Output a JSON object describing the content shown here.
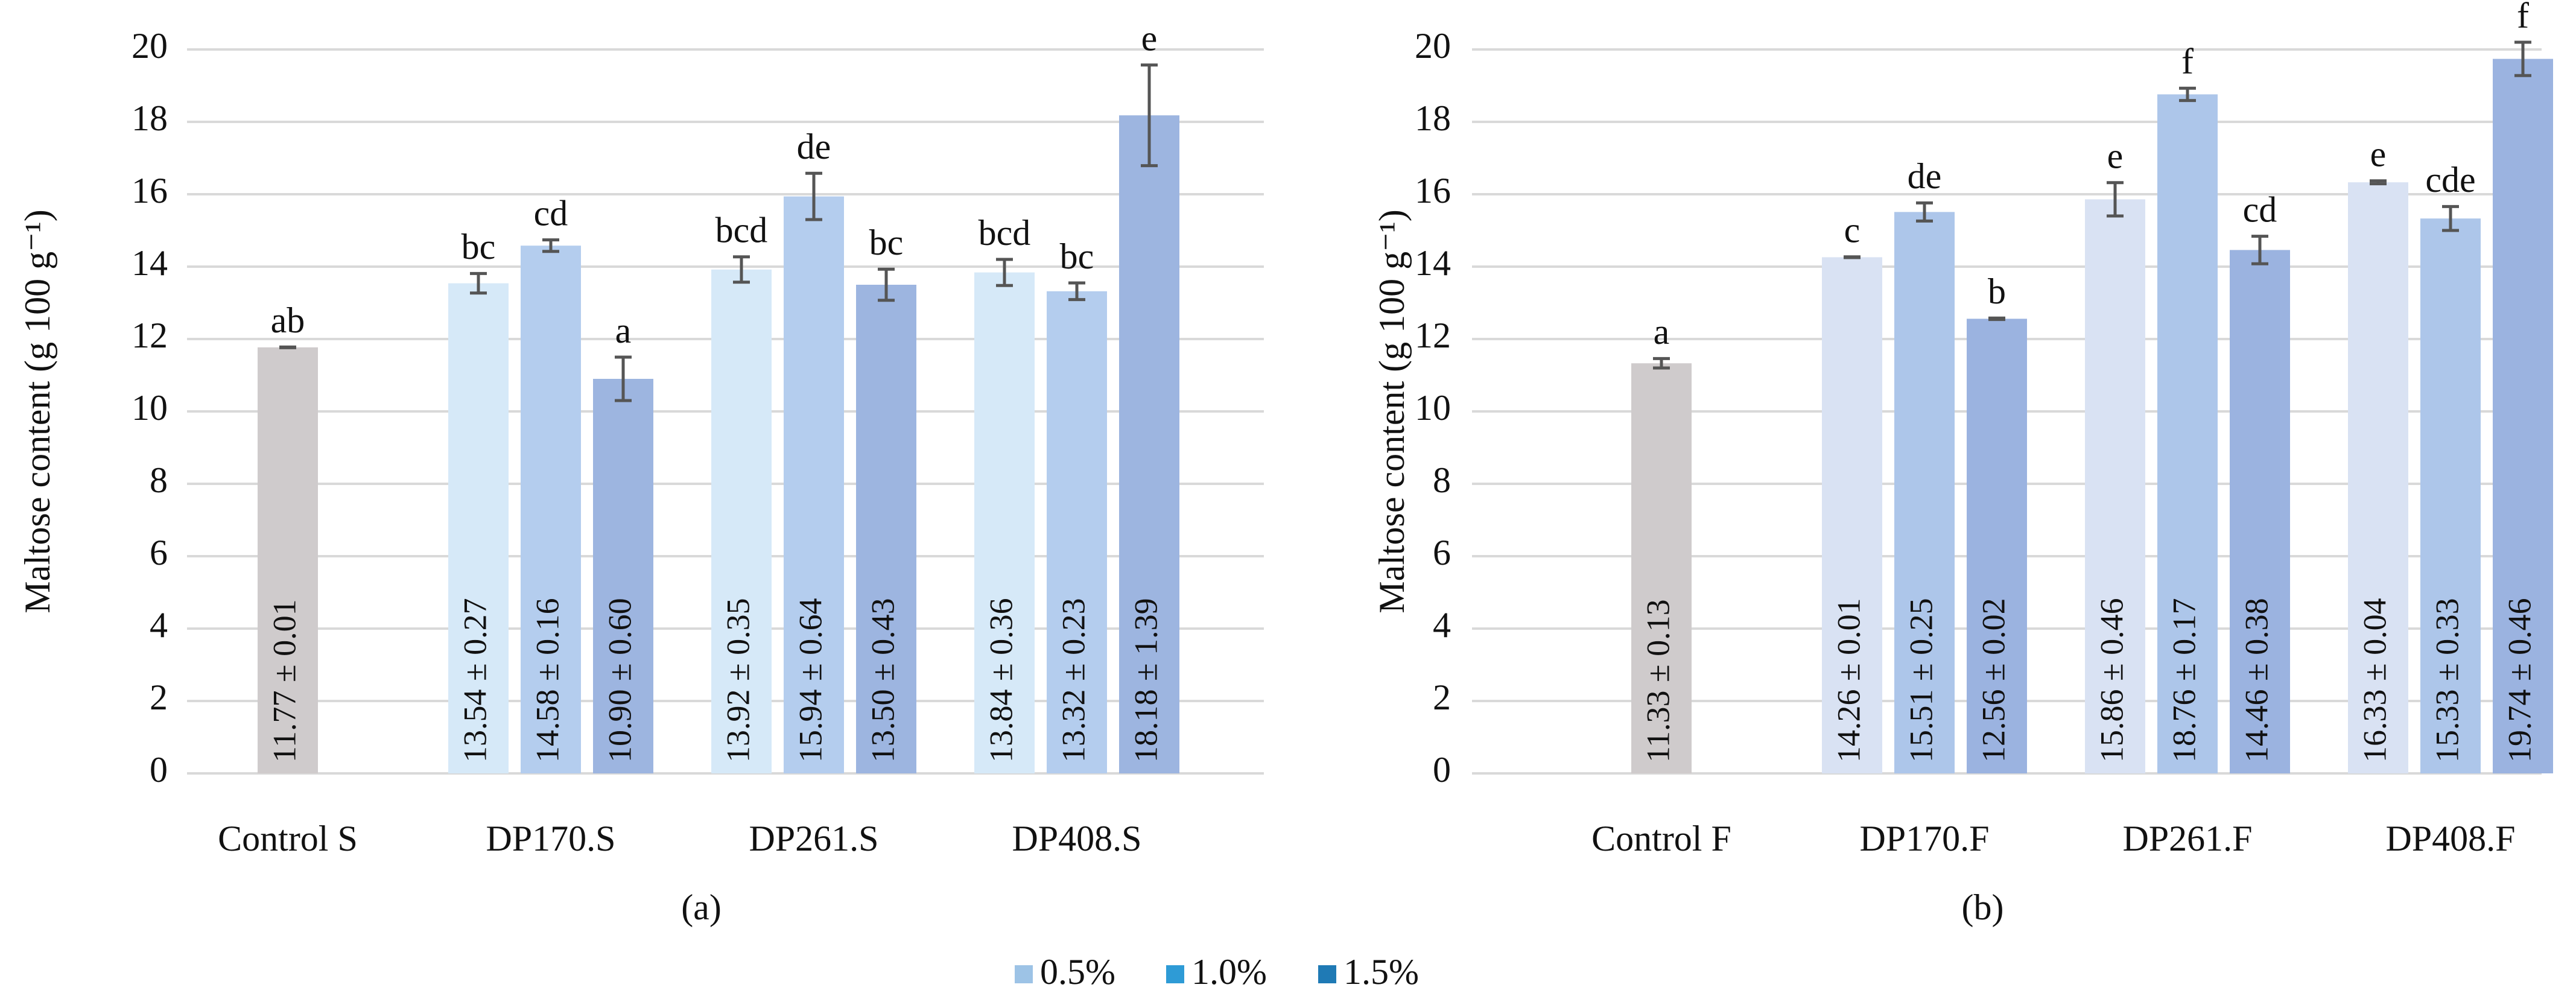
{
  "charts": [
    {
      "chart_data": {
        "type": "bar",
        "caption": "(a)",
        "y_label": "Maltose content (g 100 g⁻¹)",
        "categories": [
          "Control S",
          "DP170.S",
          "DP261.S",
          "DP408.S"
        ],
        "ylim": [
          0,
          20
        ],
        "yticks": [
          0,
          2,
          4,
          6,
          8,
          10,
          12,
          14,
          16,
          18,
          20
        ],
        "grid": true,
        "control": {
          "value": 11.77,
          "error": 0.01,
          "value_label": "11.77 ± 0.01",
          "letter": "ab",
          "color": "#cfcbcc"
        },
        "series": [
          {
            "color": "#d6e9f8",
            "values": [
              null,
              13.54,
              13.92,
              13.84
            ],
            "errors": [
              null,
              0.27,
              0.35,
              0.36
            ],
            "value_labels": [
              null,
              "13.54 ± 0.27",
              "13.92 ± 0.35",
              "13.84 ± 0.36"
            ],
            "letters": [
              null,
              "bc",
              "bcd",
              "bcd"
            ]
          },
          {
            "color": "#b4cdee",
            "values": [
              null,
              14.58,
              15.94,
              13.32
            ],
            "errors": [
              null,
              0.16,
              0.64,
              0.23
            ],
            "value_labels": [
              null,
              "14.58 ± 0.16",
              "15.94 ± 0.64",
              "13.32 ± 0.23"
            ],
            "letters": [
              null,
              "cd",
              "de",
              "bc"
            ]
          },
          {
            "color": "#9db5e0",
            "values": [
              null,
              10.9,
              13.5,
              18.18
            ],
            "errors": [
              null,
              0.6,
              0.43,
              1.39
            ],
            "value_labels": [
              null,
              "10.90 ± 0.60",
              "13.50 ± 0.43",
              "18.18 ± 1.39"
            ],
            "letters": [
              null,
              "a",
              "bc",
              "e"
            ]
          }
        ]
      }
    },
    {
      "chart_data": {
        "type": "bar",
        "caption": "(b)",
        "y_label": "Maltose content (g 100 g⁻¹)",
        "categories": [
          "Control F",
          "DP170.F",
          "DP261.F",
          "DP408.F"
        ],
        "ylim": [
          0,
          20
        ],
        "yticks": [
          0,
          2,
          4,
          6,
          8,
          10,
          12,
          14,
          16,
          18,
          20
        ],
        "grid": true,
        "control": {
          "value": 11.33,
          "error": 0.13,
          "value_label": "11.33 ± 0.13",
          "letter": "a",
          "color": "#cfcbcc"
        },
        "series": [
          {
            "color": "#d9e2f3",
            "values": [
              null,
              14.26,
              15.86,
              16.33
            ],
            "errors": [
              null,
              0.01,
              0.46,
              0.04
            ],
            "value_labels": [
              null,
              "14.26 ± 0.01",
              "15.86 ± 0.46",
              "16.33 ± 0.04"
            ],
            "letters": [
              null,
              "c",
              "e",
              "e"
            ]
          },
          {
            "color": "#adc6ea",
            "values": [
              null,
              15.51,
              18.76,
              15.33
            ],
            "errors": [
              null,
              0.25,
              0.17,
              0.33
            ],
            "value_labels": [
              null,
              "15.51 ± 0.25",
              "18.76 ± 0.17",
              "15.33 ± 0.33"
            ],
            "letters": [
              null,
              "de",
              "f",
              "cde"
            ]
          },
          {
            "color": "#9bb3e0",
            "values": [
              null,
              12.56,
              14.46,
              19.74
            ],
            "errors": [
              null,
              0.02,
              0.38,
              0.46
            ],
            "value_labels": [
              null,
              "12.56 ± 0.02",
              "14.46 ± 0.38",
              "19.74 ± 0.46"
            ],
            "letters": [
              null,
              "b",
              "cd",
              "f"
            ]
          }
        ]
      }
    }
  ],
  "legend": {
    "items": [
      {
        "label": "0.5%",
        "color": "#9dc3e6"
      },
      {
        "label": "1.0%",
        "color": "#2e9bd6"
      },
      {
        "label": "1.5%",
        "color": "#1f7ab5"
      }
    ]
  }
}
